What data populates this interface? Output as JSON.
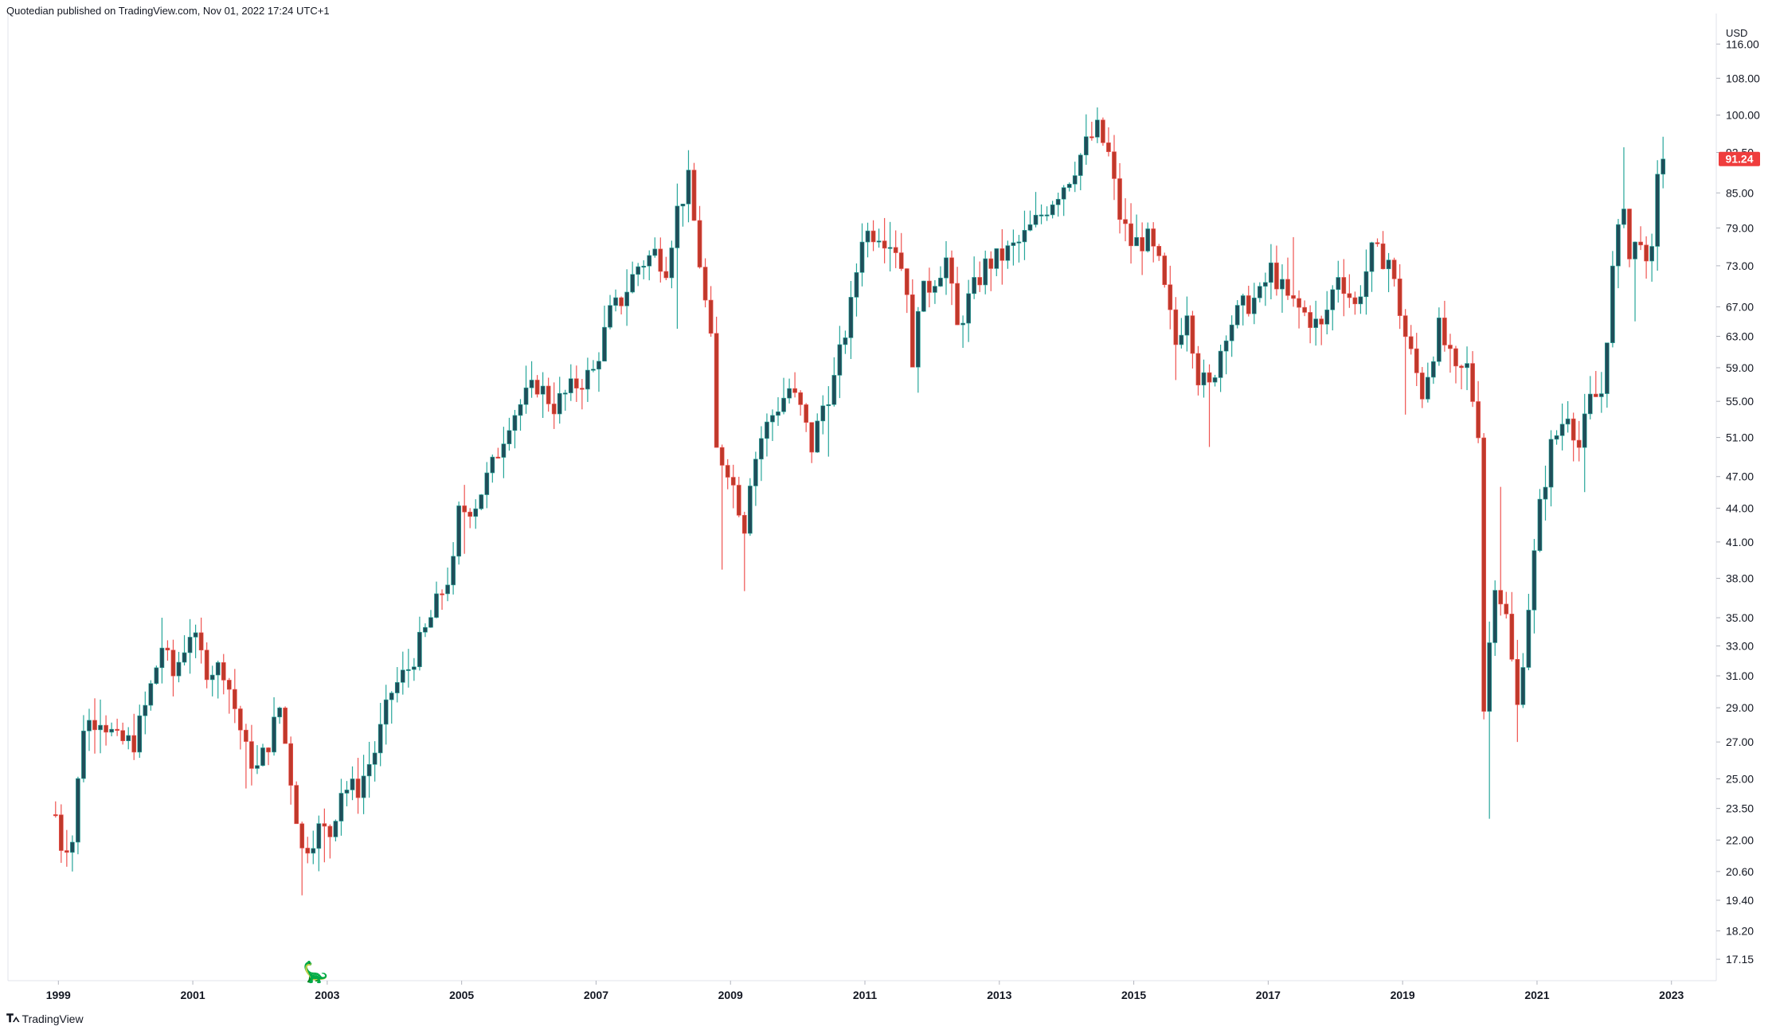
{
  "header": {
    "text": "Quotedian published on TradingView.com, Nov 01, 2022 17:24 UTC+1"
  },
  "footer": {
    "brand": "TradingView",
    "logo": "tradingview-logo-icon"
  },
  "colors": {
    "up": "#26a69a",
    "up_body": "#1f4e5a",
    "down": "#ef5350",
    "down_body": "#c0392b",
    "last_price_bg": "#ef3d3d",
    "axis_text": "#131722",
    "border": "#e0e3eb"
  },
  "chart_data": {
    "type": "candlestick",
    "currency_label": "USD",
    "y_scale": "log",
    "ylim": [
      16.4,
      122
    ],
    "y_ticks": [
      "116.00",
      "108.00",
      "100.00",
      "92.50",
      "85.00",
      "79.00",
      "73.00",
      "67.00",
      "63.00",
      "59.00",
      "55.00",
      "51.00",
      "47.00",
      "44.00",
      "41.00",
      "38.00",
      "35.00",
      "33.00",
      "31.00",
      "29.00",
      "27.00",
      "25.00",
      "23.50",
      "22.00",
      "20.60",
      "19.40",
      "18.20",
      "17.15"
    ],
    "x_ticks": [
      "1999",
      "2001",
      "2003",
      "2005",
      "2007",
      "2009",
      "2011",
      "2013",
      "2015",
      "2017",
      "2019",
      "2021",
      "2023"
    ],
    "xlim": [
      "1998-04",
      "2023-09"
    ],
    "last_price": {
      "label": "91.24",
      "value": 91.24
    },
    "close_path": [
      [
        "1998-12",
        23.2
      ],
      [
        "1999-01",
        21.8
      ],
      [
        "1999-03",
        22.0
      ],
      [
        "1999-05",
        28.0
      ],
      [
        "1999-08",
        28.5
      ],
      [
        "1999-11",
        27.0
      ],
      [
        "2000-02",
        27.0
      ],
      [
        "2000-04",
        29.0
      ],
      [
        "2000-07",
        33.0
      ],
      [
        "2000-09",
        31.0
      ],
      [
        "2000-12",
        34.0
      ],
      [
        "2001-03",
        31.5
      ],
      [
        "2001-06",
        31.5
      ],
      [
        "2001-08",
        29.0
      ],
      [
        "2001-10",
        26.5
      ],
      [
        "2001-12",
        25.5
      ],
      [
        "2002-02",
        27.0
      ],
      [
        "2002-04",
        29.0
      ],
      [
        "2002-06",
        25.0
      ],
      [
        "2002-08",
        21.5
      ],
      [
        "2002-11",
        22.5
      ],
      [
        "2003-01",
        22.3
      ],
      [
        "2003-03",
        24.5
      ],
      [
        "2003-06",
        24.5
      ],
      [
        "2003-09",
        26.5
      ],
      [
        "2003-12",
        30.0
      ],
      [
        "2004-03",
        31.5
      ],
      [
        "2004-06",
        34.0
      ],
      [
        "2004-09",
        37.0
      ],
      [
        "2004-11",
        39.0
      ],
      [
        "2004-12",
        43.5
      ],
      [
        "2005-03",
        44.5
      ],
      [
        "2005-06",
        48.0
      ],
      [
        "2005-09",
        53.0
      ],
      [
        "2005-12",
        55.5
      ],
      [
        "2006-02",
        57.0
      ],
      [
        "2006-05",
        54.5
      ],
      [
        "2006-09",
        57.0
      ],
      [
        "2006-12",
        58.5
      ],
      [
        "2007-03",
        66.0
      ],
      [
        "2007-05",
        68.0
      ],
      [
        "2007-08",
        73.0
      ],
      [
        "2007-11",
        75.0
      ],
      [
        "2008-01",
        73.0
      ],
      [
        "2008-03",
        82.0
      ],
      [
        "2008-05",
        87.0
      ],
      [
        "2008-07",
        73.5
      ],
      [
        "2008-09",
        62.0
      ],
      [
        "2008-10",
        49.5
      ],
      [
        "2008-12",
        48.0
      ],
      [
        "2009-03",
        42.5
      ],
      [
        "2009-04",
        47.0
      ],
      [
        "2009-06",
        51.0
      ],
      [
        "2009-08",
        53.5
      ],
      [
        "2009-11",
        56.5
      ],
      [
        "2010-01",
        54.0
      ],
      [
        "2010-03",
        50.0
      ],
      [
        "2010-05",
        54.5
      ],
      [
        "2010-07",
        57.5
      ],
      [
        "2010-10",
        67.0
      ],
      [
        "2010-12",
        78.0
      ],
      [
        "2011-03",
        78.5
      ],
      [
        "2011-06",
        76.0
      ],
      [
        "2011-08",
        70.0
      ],
      [
        "2011-09",
        58.0
      ],
      [
        "2011-10",
        68.0
      ],
      [
        "2011-12",
        70.0
      ],
      [
        "2012-03",
        74.0
      ],
      [
        "2012-05",
        64.0
      ],
      [
        "2012-07",
        68.0
      ],
      [
        "2012-10",
        73.0
      ],
      [
        "2013-01",
        74.5
      ],
      [
        "2013-04",
        76.5
      ],
      [
        "2013-07",
        80.0
      ],
      [
        "2013-10",
        84.0
      ],
      [
        "2014-01",
        88.0
      ],
      [
        "2014-04",
        94.0
      ],
      [
        "2014-06",
        97.0
      ],
      [
        "2014-08",
        92.0
      ],
      [
        "2014-10",
        81.0
      ],
      [
        "2014-12",
        76.5
      ],
      [
        "2015-03",
        77.0
      ],
      [
        "2015-05",
        73.0
      ],
      [
        "2015-08",
        62.0
      ],
      [
        "2015-10",
        67.0
      ],
      [
        "2015-12",
        58.0
      ],
      [
        "2016-02",
        56.5
      ],
      [
        "2016-05",
        64.0
      ],
      [
        "2016-08",
        67.0
      ],
      [
        "2016-11",
        68.5
      ],
      [
        "2017-01",
        72.5
      ],
      [
        "2017-04",
        68.0
      ],
      [
        "2017-07",
        66.0
      ],
      [
        "2017-10",
        64.0
      ],
      [
        "2018-01",
        72.0
      ],
      [
        "2018-04",
        67.0
      ],
      [
        "2018-07",
        75.0
      ],
      [
        "2018-10",
        74.0
      ],
      [
        "2019-01",
        63.0
      ],
      [
        "2019-04",
        56.0
      ],
      [
        "2019-07",
        64.0
      ],
      [
        "2019-10",
        58.0
      ],
      [
        "2019-12",
        59.0
      ],
      [
        "2020-02",
        52.0
      ],
      [
        "2020-03",
        29.0
      ],
      [
        "2020-05",
        38.0
      ],
      [
        "2020-07",
        35.0
      ],
      [
        "2020-09",
        29.0
      ],
      [
        "2020-11",
        36.0
      ],
      [
        "2021-01",
        44.0
      ],
      [
        "2021-03",
        50.0
      ],
      [
        "2021-06",
        54.0
      ],
      [
        "2021-08",
        50.0
      ],
      [
        "2021-10",
        55.0
      ],
      [
        "2021-12",
        56.0
      ],
      [
        "2022-02",
        72.0
      ],
      [
        "2022-04",
        84.0
      ],
      [
        "2022-05",
        74.0
      ],
      [
        "2022-07",
        78.0
      ],
      [
        "2022-08",
        72.0
      ],
      [
        "2022-09",
        74.5
      ],
      [
        "2022-10",
        89.5
      ],
      [
        "2022-11",
        91.24
      ]
    ],
    "wick_path": [
      [
        "1999-06",
        26.5
      ],
      [
        "1999-08",
        29.5
      ],
      [
        "2000-02",
        26.0
      ],
      [
        "2000-04",
        30.0
      ],
      [
        "2000-07",
        35.0
      ],
      [
        "2001-01",
        34.5
      ],
      [
        "2001-05",
        32.0
      ],
      [
        "2001-10",
        24.5
      ],
      [
        "2002-05",
        27.0
      ],
      [
        "2002-08",
        19.6
      ],
      [
        "2002-12",
        21.0
      ],
      [
        "2003-03",
        25.0
      ],
      [
        "2005-01",
        40.0
      ],
      [
        "2006-06",
        52.5
      ],
      [
        "2007-02",
        62.0
      ],
      [
        "2008-03",
        64.0
      ],
      [
        "2008-06",
        90.5
      ],
      [
        "2008-11",
        38.7
      ],
      [
        "2009-03",
        37.0
      ],
      [
        "2010-06",
        49.0
      ],
      [
        "2011-05",
        80.0
      ],
      [
        "2011-10",
        56.0
      ],
      [
        "2012-06",
        61.5
      ],
      [
        "2014-07",
        99.5
      ],
      [
        "2015-08",
        57.5
      ],
      [
        "2016-02",
        50.0
      ],
      [
        "2017-05",
        77.5
      ],
      [
        "2018-09",
        78.5
      ],
      [
        "2019-01",
        53.5
      ],
      [
        "2020-04",
        23.0
      ],
      [
        "2020-06",
        46.0
      ],
      [
        "2020-09",
        27.0
      ],
      [
        "2021-09",
        45.5
      ],
      [
        "2022-04",
        93.5
      ],
      [
        "2022-06",
        65.0
      ]
    ]
  }
}
